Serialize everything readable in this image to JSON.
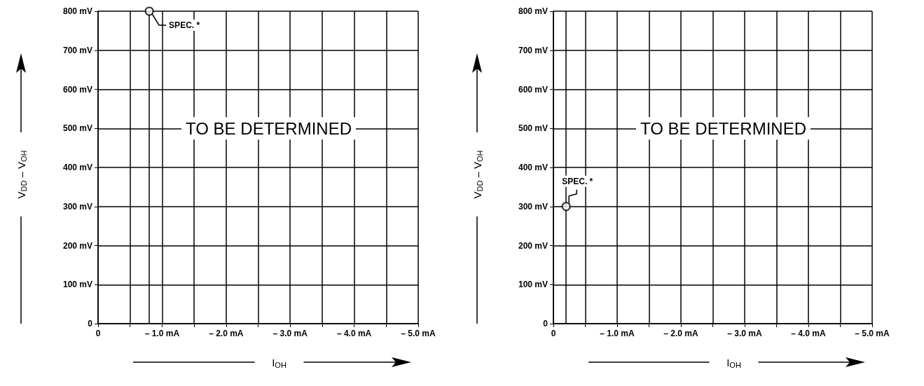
{
  "chart_data": [
    {
      "type": "scatter",
      "xlabel": "I$_{OH}$",
      "ylabel": "V$_{DD}$ – V$_{OH}$",
      "xlim": [
        0,
        -5
      ],
      "xticks": [
        0,
        {
          "value": -0.5,
          "label": null
        },
        {
          "value": -1,
          "label": "– 1.0 mA"
        },
        {
          "value": -1.5,
          "label": null
        },
        {
          "value": -2,
          "label": "– 2.0 mA"
        },
        {
          "value": -2.5,
          "label": null
        },
        {
          "value": -3,
          "label": "– 3.0 mA"
        },
        {
          "value": -3.5,
          "label": null
        },
        {
          "value": -4,
          "label": "– 4.0 mA"
        },
        {
          "value": -4.5,
          "label": null
        },
        {
          "value": -5,
          "label": "– 5.0 mA"
        }
      ],
      "ylim": [
        0,
        800
      ],
      "yticks": [
        0,
        {
          "value": 100,
          "label": "100 mV"
        },
        {
          "value": 200,
          "label": "200 mV"
        },
        {
          "value": 300,
          "label": "300 mV"
        },
        {
          "value": 400,
          "label": "400 mV"
        },
        {
          "value": 500,
          "label": "500 mV"
        },
        {
          "value": 600,
          "label": "600 mV"
        },
        {
          "value": 700,
          "label": "700 mV"
        },
        {
          "value": 800,
          "label": "800 mV"
        }
      ],
      "grid": true,
      "marker": "circle",
      "series": [
        {
          "color": "#000000",
          "x": [
            -0.8
          ],
          "values": [
            800
          ]
        }
      ],
      "ref_lines": [
        {
          "axis": "x",
          "value": -0.8,
          "color": "#000000"
        }
      ],
      "annotations": [
        "TO BE DETERMINED",
        {
          "text": "SPEC. *",
          "x": -0.8,
          "y": 800
        }
      ]
    },
    {
      "type": "scatter",
      "xlabel": "I$_{OH}$",
      "ylabel": "V$_{DD}$ – V$_{OH}$",
      "xlim": [
        0,
        -5
      ],
      "xticks": [
        0,
        {
          "value": -0.5,
          "label": null
        },
        {
          "value": -1,
          "label": "– 1.0 mA"
        },
        {
          "value": -1.5,
          "label": null
        },
        {
          "value": -2,
          "label": "– 2.0 mA"
        },
        {
          "value": -2.5,
          "label": null
        },
        {
          "value": -3,
          "label": "– 3.0 mA"
        },
        {
          "value": -3.5,
          "label": null
        },
        {
          "value": -4,
          "label": "– 4.0 mA"
        },
        {
          "value": -4.5,
          "label": null
        },
        {
          "value": -5,
          "label": "– 5.0 mA"
        }
      ],
      "ylim": [
        0,
        800
      ],
      "yticks": [
        0,
        {
          "value": 100,
          "label": "100 mV"
        },
        {
          "value": 200,
          "label": "200 mV"
        },
        {
          "value": 300,
          "label": "300 mV"
        },
        {
          "value": 400,
          "label": "400 mV"
        },
        {
          "value": 500,
          "label": "500 mV"
        },
        {
          "value": 600,
          "label": "600 mV"
        },
        {
          "value": 700,
          "label": "700 mV"
        },
        {
          "value": 800,
          "label": "800 mV"
        }
      ],
      "grid": true,
      "marker": "circle",
      "series": [
        {
          "color": "#000000",
          "x": [
            -0.2
          ],
          "values": [
            300
          ]
        }
      ],
      "ref_lines": [
        {
          "axis": "x",
          "value": -0.2,
          "color": "#000000"
        }
      ],
      "annotations": [
        "TO BE DETERMINED",
        {
          "text": "SPEC. *",
          "x": -0.2,
          "y": 300
        }
      ]
    }
  ]
}
